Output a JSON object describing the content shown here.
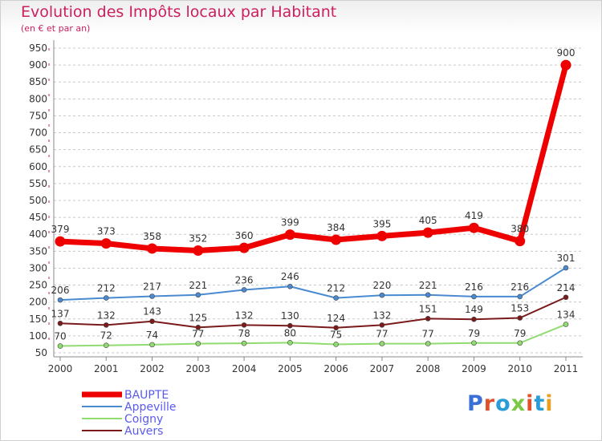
{
  "header": {
    "title": "Evolution des Impôts locaux par Habitant",
    "subtitle": "(en € et par an)"
  },
  "logo": {
    "text": "Proxiti",
    "colors": [
      "#3a6fd8",
      "#e0502a",
      "#2a9cd8",
      "#7ac843",
      "#e0502a",
      "#2a9cd8",
      "#e8a020"
    ]
  },
  "chart_data": {
    "type": "line",
    "title": "Evolution des Impôts locaux par Habitant",
    "subtitle": "(en € et par an)",
    "xlabel": "",
    "ylabel": "",
    "categories": [
      "2000",
      "2001",
      "2002",
      "2003",
      "2004",
      "2005",
      "2006",
      "2007",
      "2008",
      "2009",
      "2010",
      "2011"
    ],
    "ylim": [
      50,
      950
    ],
    "yticks": [
      50,
      100,
      150,
      200,
      250,
      300,
      350,
      400,
      450,
      500,
      550,
      600,
      650,
      700,
      750,
      800,
      850,
      900,
      950
    ],
    "grid": "horizontal dashed",
    "legend_position": "bottom-left",
    "series": [
      {
        "name": "BAUPTE",
        "color": "#ee0000",
        "values": [
          379,
          373,
          358,
          352,
          360,
          399,
          384,
          395,
          405,
          419,
          380,
          900
        ]
      },
      {
        "name": "Appeville",
        "color": "#4a8ad0",
        "values": [
          206,
          212,
          217,
          221,
          236,
          246,
          212,
          220,
          221,
          216,
          216,
          301
        ]
      },
      {
        "name": "Coigny",
        "color": "#90dc70",
        "values": [
          70,
          72,
          74,
          77,
          78,
          80,
          75,
          77,
          77,
          79,
          79,
          134
        ]
      },
      {
        "name": "Auvers",
        "color": "#7a1a1a",
        "values": [
          137,
          132,
          143,
          125,
          132,
          130,
          124,
          132,
          151,
          149,
          153,
          214
        ]
      }
    ]
  }
}
